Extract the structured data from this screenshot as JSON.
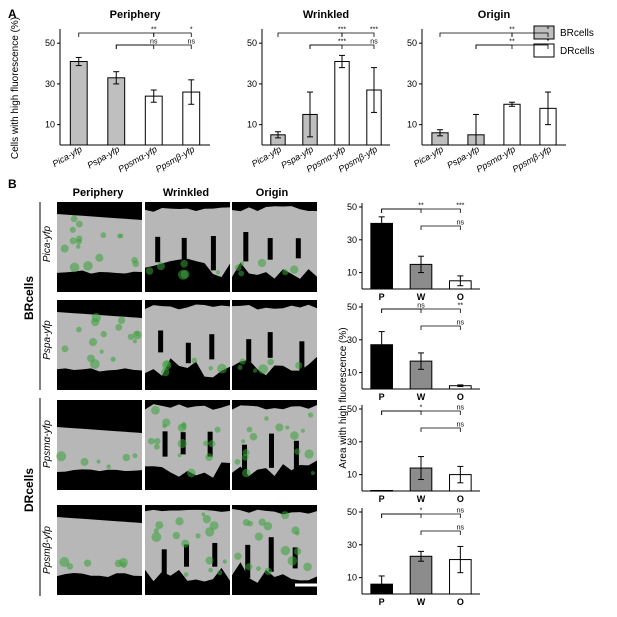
{
  "panel_a": {
    "letter": "A",
    "y_axis_label": "Cells with high fluorescence (%)",
    "legend": [
      {
        "label": "BRcells",
        "color": "#bfbfbf"
      },
      {
        "label": "DRcells",
        "color": "#ffffff"
      }
    ]
  },
  "panel_b": {
    "letter": "B",
    "image_column_headers": [
      "Periphery",
      "Wrinkled",
      "Origin"
    ],
    "group_labels": [
      "BRcells",
      "DRcells"
    ],
    "row_labels": [
      "Pica-yfp",
      "Pspa-yfp",
      "Ppsmα-yfp",
      "Ppsmβ-yfp"
    ],
    "y_axis_label": "Area with high fluorescence (%)",
    "micrograph_colors": {
      "tissue": "#b7b7b7",
      "signal": "#3aa33a",
      "background": "#000000"
    }
  },
  "chart_data": [
    {
      "type": "bar",
      "panel": "A",
      "title": "Periphery",
      "categories": [
        "Pica-yfp",
        "Pspa-yfp",
        "Ppsmα-yfp",
        "Ppsmβ-yfp"
      ],
      "values": [
        41,
        33,
        24,
        26
      ],
      "errors": [
        2,
        3,
        3,
        6
      ],
      "colors": [
        "#bfbfbf",
        "#bfbfbf",
        "#ffffff",
        "#ffffff"
      ],
      "yticks": [
        10,
        30,
        50
      ],
      "ylim": [
        0,
        55
      ],
      "significance": [
        {
          "from": 0,
          "to": 2,
          "label": "**",
          "level": 2
        },
        {
          "from": 2,
          "to": 3,
          "label": "*",
          "level": 2
        },
        {
          "from": 1,
          "to": 2,
          "label": "ns",
          "level": 1
        },
        {
          "from": 1,
          "to": 3,
          "label": "ns",
          "level": 1
        }
      ]
    },
    {
      "type": "bar",
      "panel": "A",
      "title": "Wrinkled",
      "categories": [
        "Pica-yfp",
        "Pspa-yfp",
        "Ppsmα-yfp",
        "Ppsmβ-yfp"
      ],
      "values": [
        5,
        15,
        41,
        27
      ],
      "errors": [
        1.5,
        11,
        3,
        11
      ],
      "colors": [
        "#bfbfbf",
        "#bfbfbf",
        "#ffffff",
        "#ffffff"
      ],
      "yticks": [
        10,
        30,
        50
      ],
      "ylim": [
        0,
        55
      ],
      "significance": [
        {
          "from": 0,
          "to": 2,
          "label": "***",
          "level": 2
        },
        {
          "from": 2,
          "to": 3,
          "label": "***",
          "level": 2
        },
        {
          "from": 1,
          "to": 2,
          "label": "***",
          "level": 1
        },
        {
          "from": 1,
          "to": 3,
          "label": "ns",
          "level": 1
        }
      ]
    },
    {
      "type": "bar",
      "panel": "A",
      "title": "Origin",
      "categories": [
        "Pica-yfp",
        "Pspa-yfp",
        "Ppsmα-yfp",
        "Ppsmβ-yfp"
      ],
      "values": [
        6,
        5,
        20,
        18
      ],
      "errors": [
        1.5,
        10,
        1,
        8
      ],
      "colors": [
        "#bfbfbf",
        "#bfbfbf",
        "#ffffff",
        "#ffffff"
      ],
      "yticks": [
        10,
        30,
        50
      ],
      "ylim": [
        0,
        55
      ],
      "significance": [
        {
          "from": 0,
          "to": 2,
          "label": "**",
          "level": 2
        },
        {
          "from": 2,
          "to": 3,
          "label": "*",
          "level": 2
        },
        {
          "from": 1,
          "to": 2,
          "label": "**",
          "level": 1
        },
        {
          "from": 1,
          "to": 3,
          "label": "*",
          "level": 1
        }
      ]
    },
    {
      "type": "bar",
      "panel": "B",
      "title": "",
      "categories": [
        "P",
        "W",
        "O"
      ],
      "values": [
        40,
        15,
        5
      ],
      "errors": [
        4,
        5,
        3
      ],
      "colors": [
        "#000000",
        "#8c8c8c",
        "#ffffff"
      ],
      "yticks": [
        10,
        30,
        50
      ],
      "ylim": [
        0,
        50
      ],
      "significance": [
        {
          "from": 0,
          "to": 1,
          "label": "**",
          "level": 2
        },
        {
          "from": 0,
          "to": 2,
          "label": "***",
          "level": 2
        },
        {
          "from": 1,
          "to": 2,
          "label": "ns",
          "level": 1
        }
      ]
    },
    {
      "type": "bar",
      "panel": "B",
      "title": "",
      "categories": [
        "P",
        "W",
        "O"
      ],
      "values": [
        27,
        17,
        2
      ],
      "errors": [
        8,
        5,
        0.5
      ],
      "colors": [
        "#000000",
        "#8c8c8c",
        "#ffffff"
      ],
      "yticks": [
        10,
        30,
        50
      ],
      "ylim": [
        0,
        50
      ],
      "significance": [
        {
          "from": 0,
          "to": 1,
          "label": "ns",
          "level": 2
        },
        {
          "from": 0,
          "to": 2,
          "label": "**",
          "level": 2
        },
        {
          "from": 1,
          "to": 2,
          "label": "ns",
          "level": 1
        }
      ]
    },
    {
      "type": "bar",
      "panel": "B",
      "title": "",
      "categories": [
        "P",
        "W",
        "O"
      ],
      "values": [
        0.3,
        14,
        10
      ],
      "errors": [
        0,
        7,
        5
      ],
      "colors": [
        "#000000",
        "#8c8c8c",
        "#ffffff"
      ],
      "yticks": [
        10,
        30,
        50
      ],
      "ylim": [
        0,
        50
      ],
      "significance": [
        {
          "from": 0,
          "to": 1,
          "label": "*",
          "level": 2
        },
        {
          "from": 0,
          "to": 2,
          "label": "ns",
          "level": 2
        },
        {
          "from": 1,
          "to": 2,
          "label": "ns",
          "level": 1
        }
      ]
    },
    {
      "type": "bar",
      "panel": "B",
      "title": "",
      "categories": [
        "P",
        "W",
        "O"
      ],
      "values": [
        6,
        23,
        21
      ],
      "errors": [
        5,
        3,
        8
      ],
      "colors": [
        "#000000",
        "#8c8c8c",
        "#ffffff"
      ],
      "yticks": [
        10,
        30,
        50
      ],
      "ylim": [
        0,
        50
      ],
      "significance": [
        {
          "from": 0,
          "to": 1,
          "label": "*",
          "level": 2
        },
        {
          "from": 0,
          "to": 2,
          "label": "ns",
          "level": 2
        },
        {
          "from": 1,
          "to": 2,
          "label": "ns",
          "level": 1
        }
      ]
    }
  ]
}
